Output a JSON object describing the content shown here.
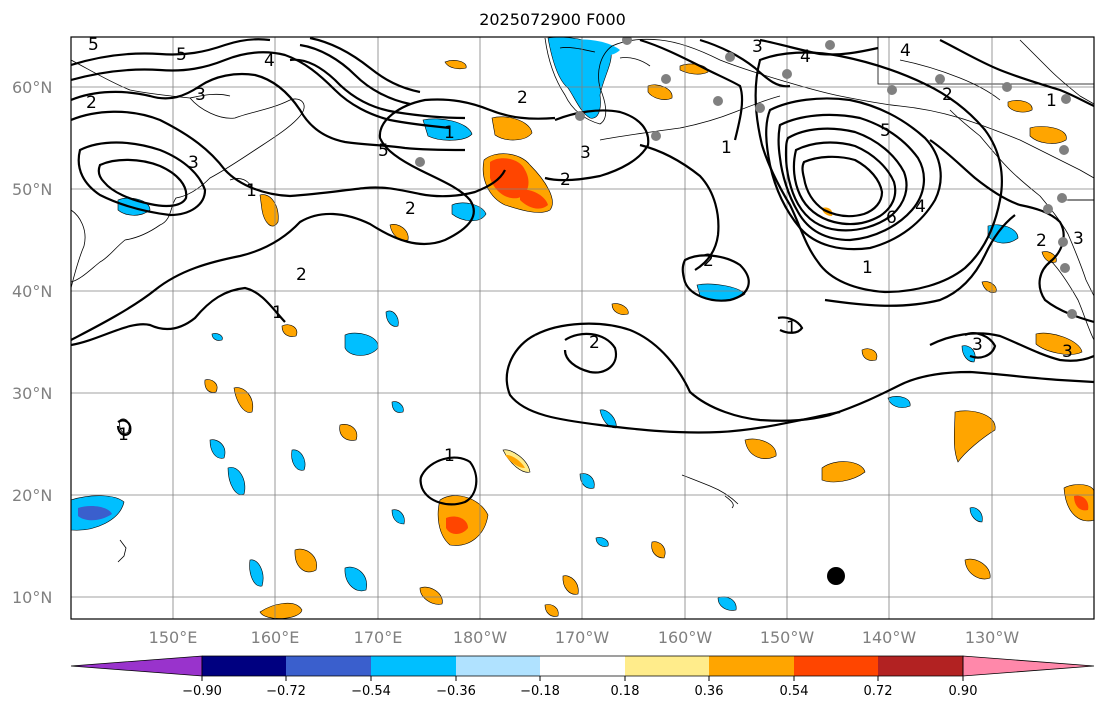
{
  "title": "2025072900 F000",
  "latitude_labels": [
    "60°N",
    "50°N",
    "40°N",
    "30°N",
    "20°N",
    "10°N"
  ],
  "longitude_labels": [
    "150°E",
    "160°E",
    "170°E",
    "180°W",
    "170°W",
    "160°W",
    "150°W",
    "140°W",
    "130°W"
  ],
  "contour_labels": [
    "1",
    "2",
    "3",
    "4",
    "5",
    "6"
  ],
  "colorbar": {
    "ticks": [
      "−0.90",
      "−0.72",
      "−0.54",
      "−0.36",
      "−0.18",
      "0.18",
      "0.36",
      "0.54",
      "0.72",
      "0.90"
    ],
    "colors": [
      "#9933cc",
      "#000080",
      "#3a5fcd",
      "#00bfff",
      "#b0e2ff",
      "#ffffff",
      "#ffec8b",
      "#ffa500",
      "#ff4500",
      "#b22222",
      "#ff88aa"
    ]
  },
  "colors": {
    "land_outline": "#000000",
    "grid": "#808080",
    "station_marker": "#808080",
    "point_marker": "#000000"
  }
}
